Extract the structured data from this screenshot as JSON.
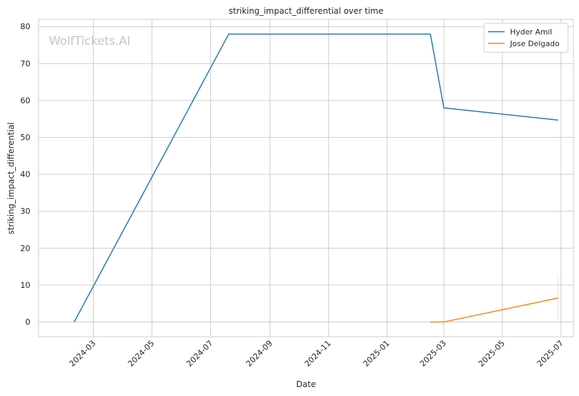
{
  "chart_data": {
    "type": "line",
    "title": "striking_impact_differential over time",
    "xlabel": "Date",
    "ylabel": "striking_impact_differential",
    "watermark": "WolfTickets.AI",
    "x_range": [
      "2024-01-04",
      "2025-07-14"
    ],
    "ylim": [
      -4,
      82
    ],
    "x_ticks": [
      "2024-03",
      "2024-05",
      "2024-07",
      "2024-09",
      "2024-11",
      "2025-01",
      "2025-03",
      "2025-05",
      "2025-07"
    ],
    "y_ticks": [
      0,
      10,
      20,
      30,
      40,
      50,
      60,
      70,
      80
    ],
    "grid": true,
    "legend": "top-right",
    "series": [
      {
        "name": "Hyder Amil",
        "color": "#1f77b4",
        "points": [
          {
            "x": "2024-02-10",
            "y": 0
          },
          {
            "x": "2024-07-20",
            "y": 78
          },
          {
            "x": "2025-02-15",
            "y": 78
          },
          {
            "x": "2025-03-01",
            "y": 58
          },
          {
            "x": "2025-06-28",
            "y": 54.7
          }
        ]
      },
      {
        "name": "Jose Delgado",
        "color": "#ff7f0e",
        "points": [
          {
            "x": "2025-02-15",
            "y": 0
          },
          {
            "x": "2025-03-01",
            "y": 0
          },
          {
            "x": "2025-06-28",
            "y": 6.5
          }
        ],
        "error_band": {
          "x": "2025-06-28",
          "low": 0,
          "high": 13
        }
      }
    ]
  }
}
